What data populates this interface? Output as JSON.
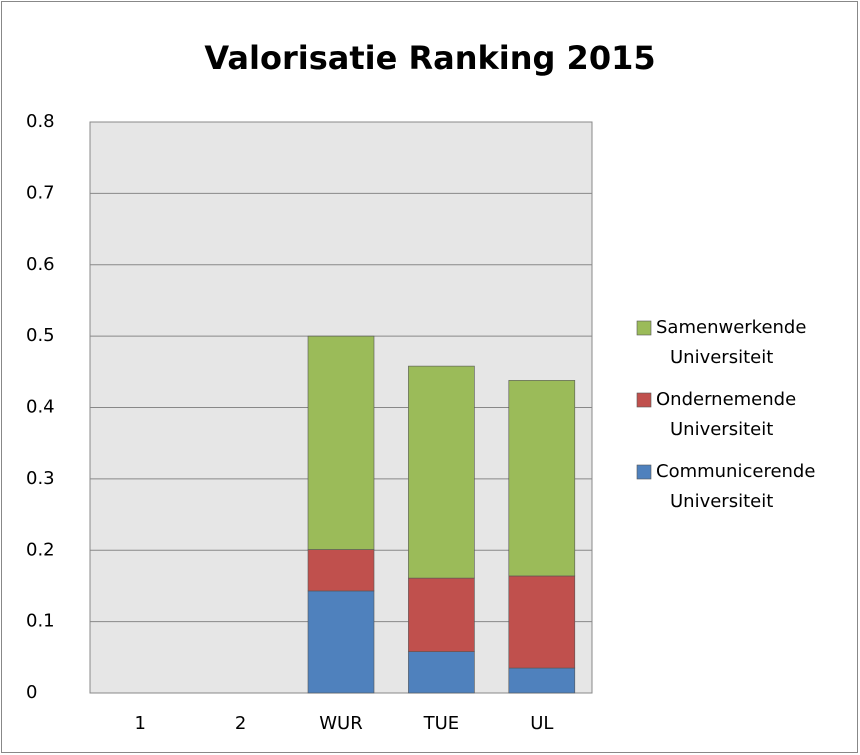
{
  "chart_data": {
    "type": "stacked_bar",
    "title": "Valorisatie Ranking 2015",
    "categories": [
      "1",
      "2",
      "WUR",
      "TUE",
      "UL"
    ],
    "series": [
      {
        "name": "Communicerende Universiteit",
        "color": "#4f81bd",
        "values": [
          null,
          null,
          0.143,
          0.058,
          0.035
        ]
      },
      {
        "name": "Ondernemende Universiteit",
        "color": "#c0504d",
        "values": [
          null,
          null,
          0.058,
          0.103,
          0.129
        ]
      },
      {
        "name": "Samenwerkende Universiteit",
        "color": "#9bbb59",
        "values": [
          null,
          null,
          0.299,
          0.297,
          0.274
        ]
      }
    ],
    "ylim": [
      0,
      0.8
    ],
    "yticks": [
      0,
      0.1,
      0.2,
      0.3,
      0.4,
      0.5,
      0.6,
      0.7,
      0.8
    ],
    "grid": true,
    "legend": "right"
  }
}
